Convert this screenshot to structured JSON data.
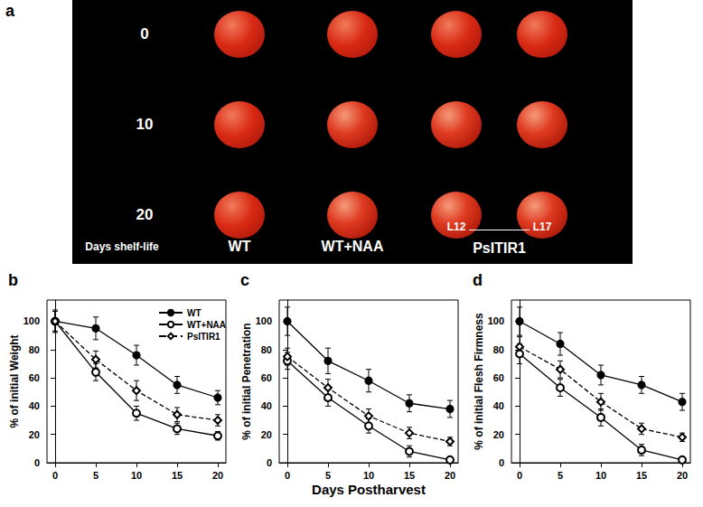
{
  "photo_panel": {
    "label": "a",
    "row_labels": [
      "0",
      "10",
      "20"
    ],
    "columns": [
      "WT",
      "WT+NAA"
    ],
    "lines": [
      "L12",
      "L17"
    ],
    "line_group": "PsITIR1",
    "axis_note": "Days shelf-life"
  },
  "chart_data": [
    {
      "type": "line",
      "title": "b",
      "y_label": "% of initial Weight",
      "x": [
        0,
        5,
        10,
        15,
        20
      ],
      "xlim": [
        -1,
        21
      ],
      "xticks": [
        0,
        5,
        10,
        15,
        20
      ],
      "ylim": [
        0,
        115
      ],
      "yticks": [
        0,
        20,
        40,
        60,
        80,
        100
      ],
      "grid": false,
      "legend": "upper right",
      "series": [
        {
          "name": "WT",
          "color": "#000000",
          "marker": "circle",
          "line_style": "solid",
          "values": [
            100,
            95,
            76,
            55,
            46
          ],
          "errors": [
            8,
            8,
            7,
            6,
            5
          ]
        },
        {
          "name": "WT+NAA",
          "color": "#000000",
          "marker": "open_circle",
          "line_style": "solid",
          "values": [
            100,
            64,
            35,
            24,
            19
          ],
          "errors": [
            7,
            6,
            5,
            4,
            3
          ]
        },
        {
          "name": "PsITIR1",
          "color": "#000000",
          "marker": "open_diamond",
          "line_style": "dashed",
          "values": [
            100,
            73,
            51,
            34,
            30
          ],
          "errors": [
            7,
            6,
            7,
            5,
            4
          ]
        }
      ]
    },
    {
      "type": "line",
      "title": "c",
      "y_label": "% of initial Penetration",
      "x_label": "Days Postharvest",
      "x": [
        0,
        5,
        10,
        15,
        20
      ],
      "xlim": [
        -1,
        21
      ],
      "xticks": [
        0,
        5,
        10,
        15,
        20
      ],
      "ylim": [
        0,
        115
      ],
      "yticks": [
        0,
        20,
        40,
        60,
        80,
        100
      ],
      "grid": false,
      "series": [
        {
          "name": "WT",
          "color": "#000000",
          "marker": "circle",
          "line_style": "solid",
          "values": [
            100,
            72,
            58,
            42,
            38
          ],
          "errors": [
            10,
            9,
            8,
            6,
            6
          ]
        },
        {
          "name": "WT+NAA",
          "color": "#000000",
          "marker": "open_circle",
          "line_style": "solid",
          "values": [
            72,
            46,
            26,
            8,
            2
          ],
          "errors": [
            6,
            6,
            5,
            4,
            2
          ]
        },
        {
          "name": "PsITIR1",
          "color": "#000000",
          "marker": "open_diamond",
          "line_style": "dashed",
          "values": [
            75,
            53,
            33,
            21,
            15
          ],
          "errors": [
            6,
            6,
            5,
            4,
            3
          ]
        }
      ]
    },
    {
      "type": "line",
      "title": "d",
      "y_label": "% of initial Flesh Firmness",
      "x": [
        0,
        5,
        10,
        15,
        20
      ],
      "xlim": [
        -1,
        21
      ],
      "xticks": [
        0,
        5,
        10,
        15,
        20
      ],
      "ylim": [
        0,
        115
      ],
      "yticks": [
        0,
        20,
        40,
        60,
        80,
        100
      ],
      "grid": false,
      "series": [
        {
          "name": "WT",
          "color": "#000000",
          "marker": "circle",
          "line_style": "solid",
          "values": [
            100,
            84,
            62,
            55,
            43
          ],
          "errors": [
            10,
            8,
            7,
            6,
            6
          ]
        },
        {
          "name": "WT+NAA",
          "color": "#000000",
          "marker": "open_circle",
          "line_style": "solid",
          "values": [
            77,
            53,
            32,
            9,
            2
          ],
          "errors": [
            7,
            6,
            6,
            4,
            2
          ]
        },
        {
          "name": "PsITIR1",
          "color": "#000000",
          "marker": "open_diamond",
          "line_style": "dashed",
          "values": [
            82,
            66,
            43,
            24,
            18
          ],
          "errors": [
            7,
            6,
            6,
            4,
            3
          ]
        }
      ]
    }
  ]
}
